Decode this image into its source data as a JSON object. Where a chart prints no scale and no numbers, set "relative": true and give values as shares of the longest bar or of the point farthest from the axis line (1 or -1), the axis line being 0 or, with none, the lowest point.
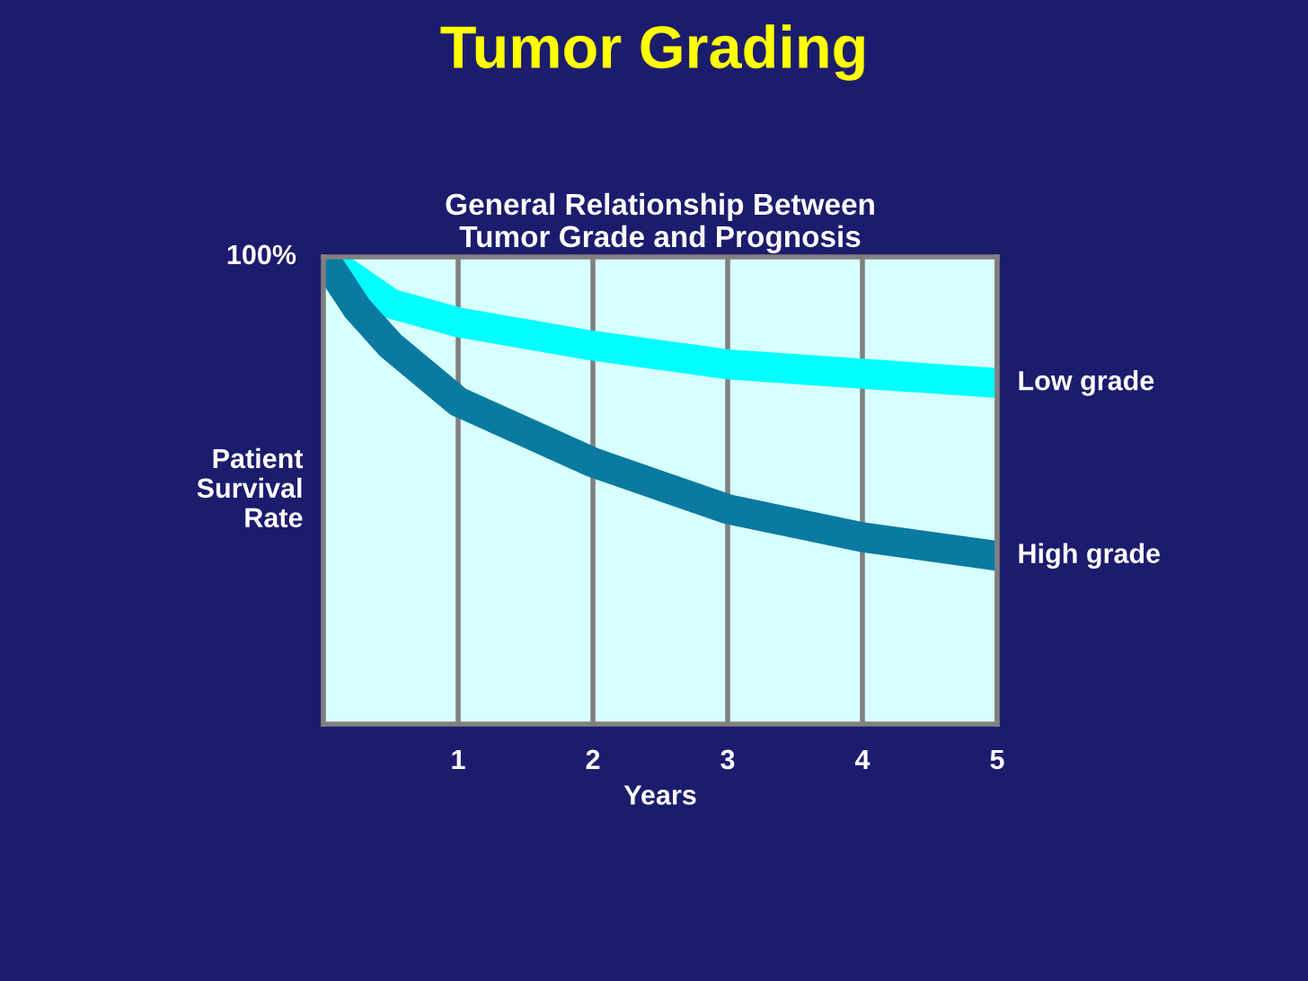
{
  "chart_data": {
    "type": "line",
    "title": "Tumor Grading",
    "subtitle": "General Relationship Between\nTumor Grade and Prognosis",
    "xlabel": "Years",
    "ylabel": "Patient\nSurvival\nRate",
    "relative": true,
    "annotations": [
      "100%"
    ],
    "xlim": [
      0,
      5
    ],
    "xticks": [
      1,
      2,
      3,
      4,
      5
    ],
    "grid": "x",
    "line_style": "solid",
    "series": [
      {
        "name": "Low grade",
        "color": "#00ffff",
        "x": [
          0,
          0.5,
          1,
          2,
          3,
          4,
          5
        ],
        "values": [
          1,
          0.9,
          0.86,
          0.81,
          0.77,
          0.75,
          0.73
        ]
      },
      {
        "name": "High grade",
        "color": "#0a7aa0",
        "x": [
          0,
          0.25,
          0.5,
          1,
          2,
          3,
          4,
          5
        ],
        "values": [
          1,
          0.89,
          0.81,
          0.69,
          0.56,
          0.46,
          0.4,
          0.36
        ]
      }
    ]
  }
}
